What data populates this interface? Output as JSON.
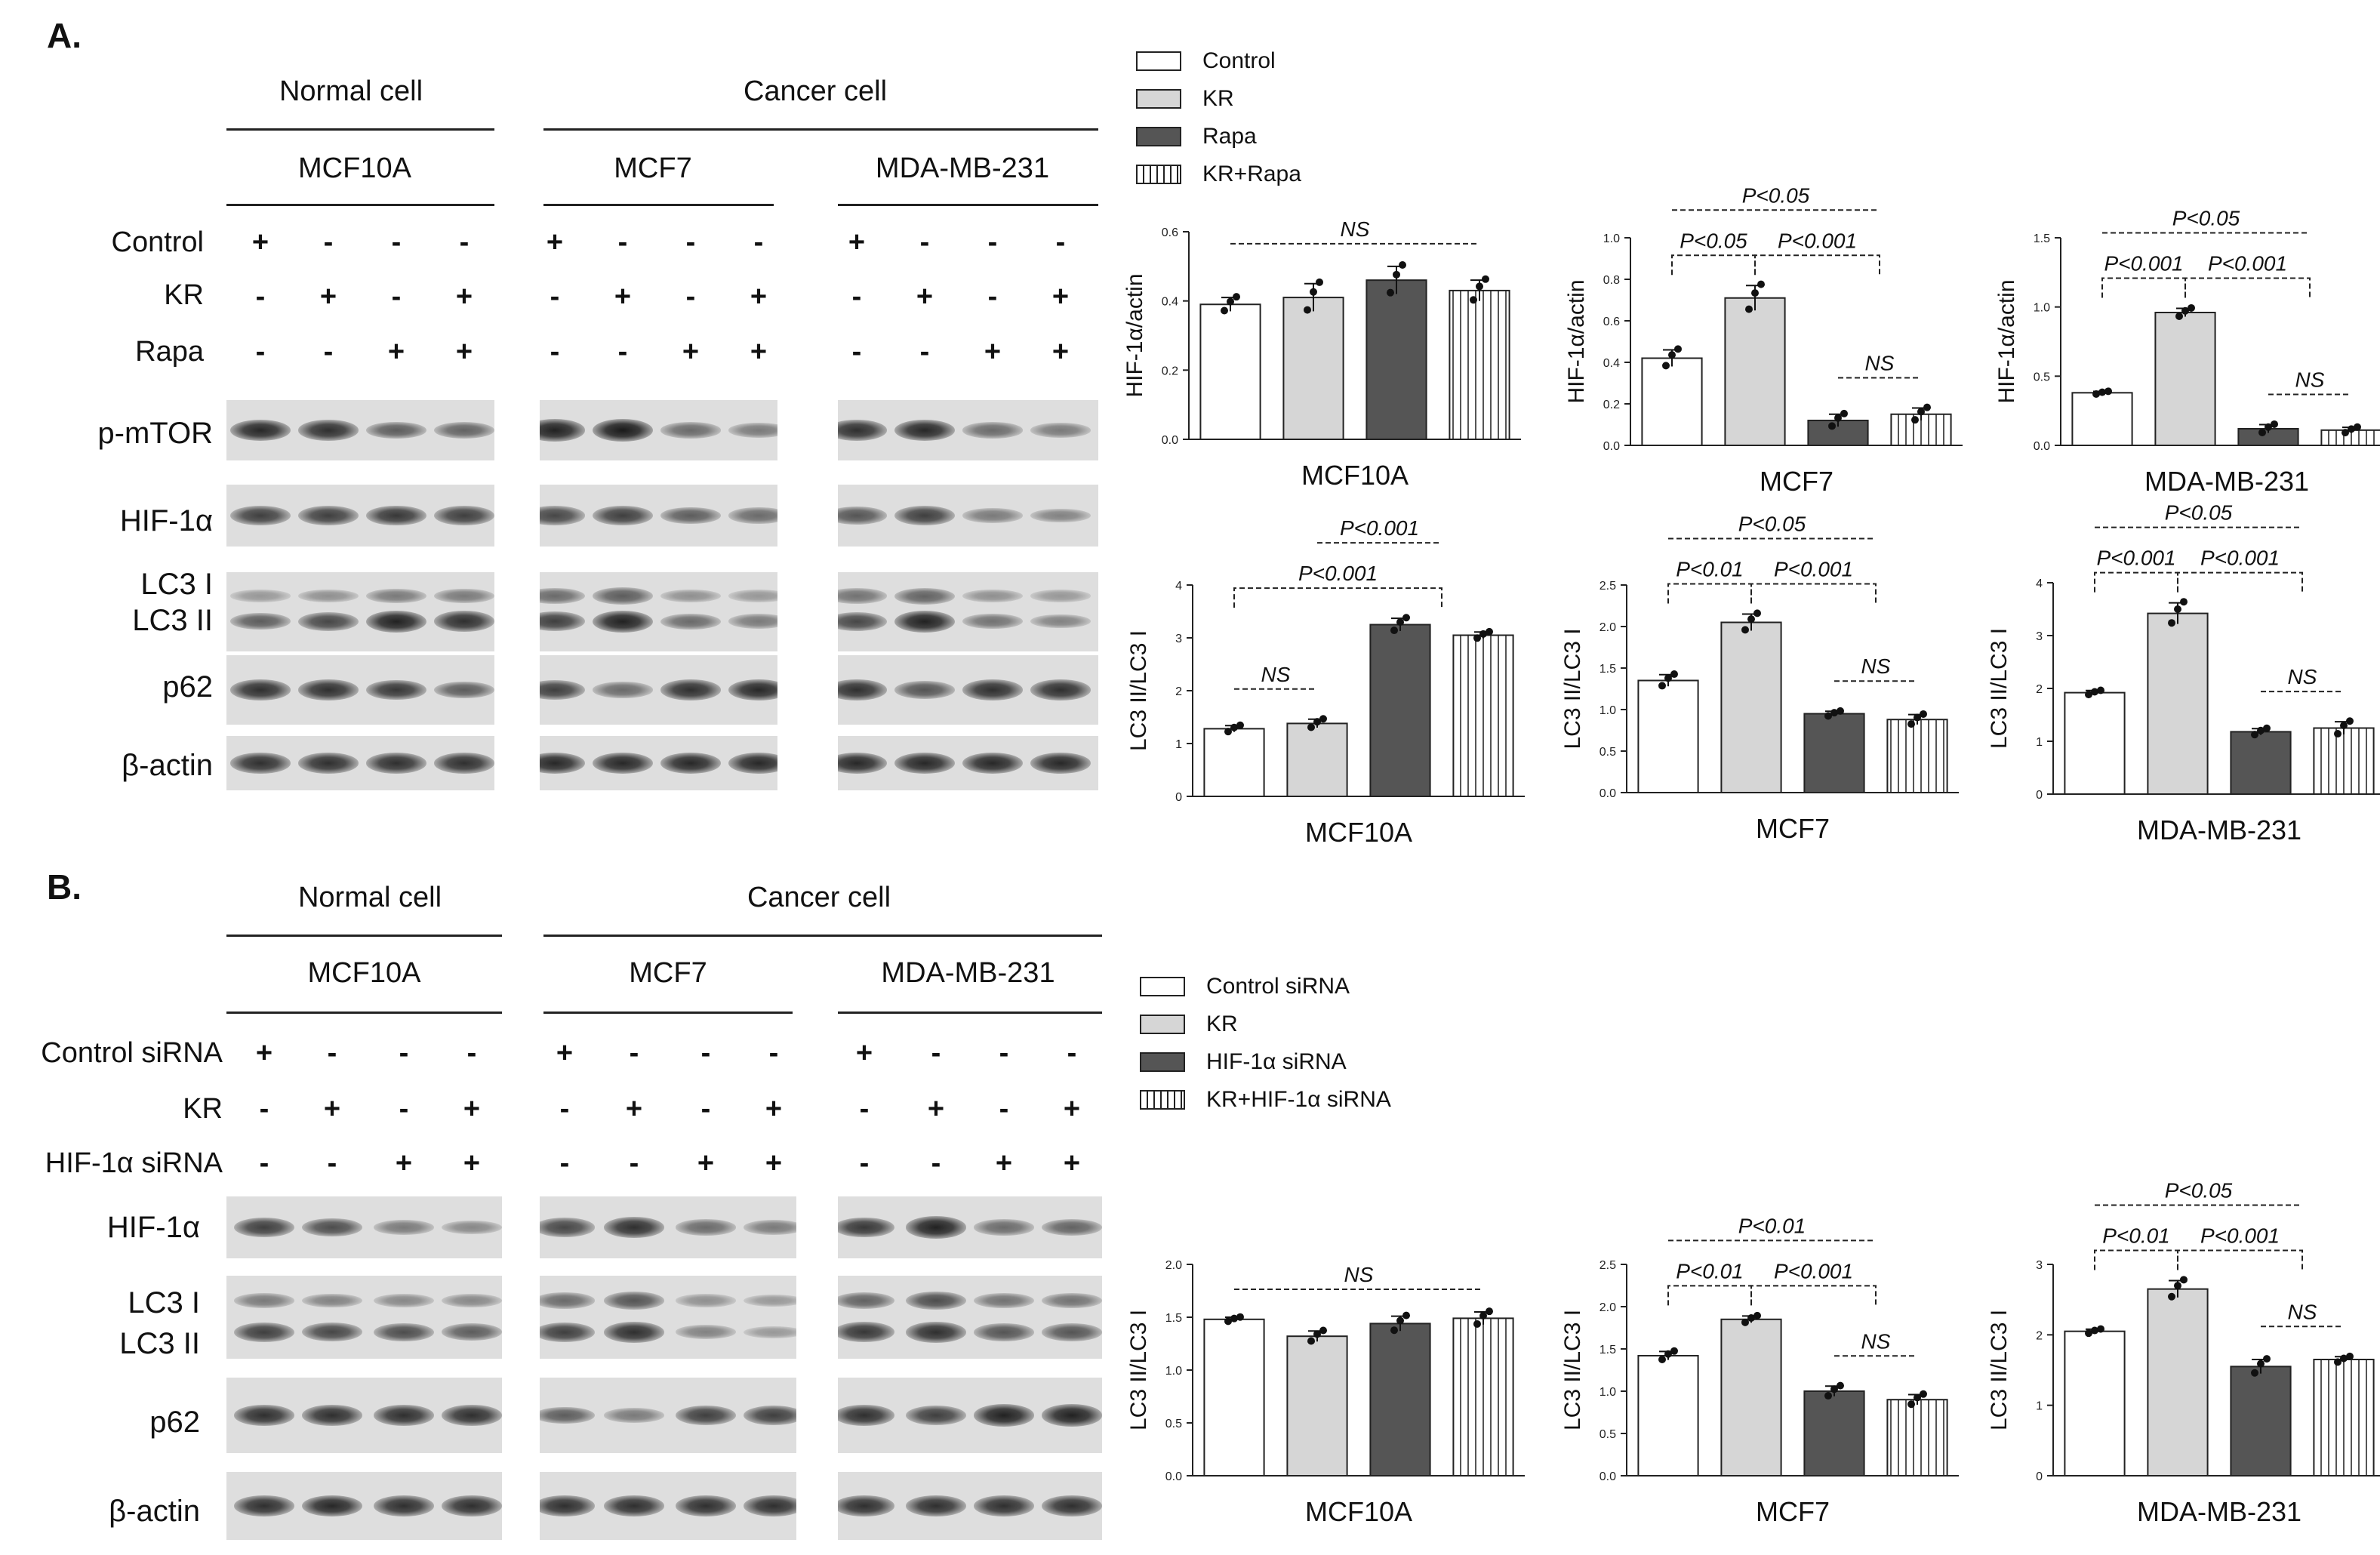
{
  "panel_a": {
    "label": "A.",
    "group_normal": "Normal cell",
    "group_cancer": "Cancer cell",
    "lines": [
      "MCF10A",
      "MCF7",
      "MDA-MB-231"
    ],
    "treatments": [
      {
        "name": "Control",
        "signs": [
          "+",
          "-",
          "-",
          "-"
        ]
      },
      {
        "name": "KR",
        "signs": [
          "-",
          "+",
          "-",
          "+"
        ]
      },
      {
        "name": "Rapa",
        "signs": [
          "-",
          "-",
          "+",
          "+"
        ]
      }
    ],
    "blots": [
      "p-mTOR",
      "HIF-1α",
      "LC3 I",
      "LC3 II",
      "p62",
      "β-actin"
    ],
    "legend": [
      "Control",
      "KR",
      "Rapa",
      "KR+Rapa"
    ]
  },
  "panel_b": {
    "label": "B.",
    "group_normal": "Normal cell",
    "group_cancer": "Cancer cell",
    "lines": [
      "MCF10A",
      "MCF7",
      "MDA-MB-231"
    ],
    "treatments": [
      {
        "name": "Control siRNA",
        "signs": [
          "+",
          "-",
          "-",
          "-"
        ]
      },
      {
        "name": "KR",
        "signs": [
          "-",
          "+",
          "-",
          "+"
        ]
      },
      {
        "name": "HIF-1α siRNA",
        "signs": [
          "-",
          "-",
          "+",
          "+"
        ]
      }
    ],
    "blots": [
      "HIF-1α",
      "LC3 I",
      "LC3 II",
      "p62",
      "β-actin"
    ],
    "legend": [
      "Control siRNA",
      "KR",
      "HIF-1α siRNA",
      "KR+HIF-1α siRNA"
    ]
  },
  "colors": {
    "control": "#ffffff",
    "kr": "#d6d6d6",
    "treat": "#555555",
    "combo": "#ffffff"
  },
  "chart_data": [
    {
      "type": "bar",
      "panel": "A",
      "title": "MCF10A",
      "ylabel": "HIF-1α/actin",
      "ylim": [
        0,
        0.6
      ],
      "yticks": [
        "0.0",
        "0.2",
        "0.4",
        "0.6"
      ],
      "values": [
        0.39,
        0.41,
        0.46,
        0.43
      ],
      "errors": [
        0.02,
        0.04,
        0.04,
        0.03
      ],
      "annotations": [
        {
          "text": "NS",
          "from": 0,
          "to": 3,
          "level": 0
        }
      ]
    },
    {
      "type": "bar",
      "panel": "A",
      "title": "MCF7",
      "ylabel": "HIF-1α/actin",
      "ylim": [
        0,
        1.0
      ],
      "yticks": [
        "0.0",
        "0.2",
        "0.4",
        "0.6",
        "0.8",
        "1.0"
      ],
      "values": [
        0.42,
        0.71,
        0.12,
        0.15
      ],
      "errors": [
        0.04,
        0.06,
        0.03,
        0.03
      ],
      "annotations": [
        {
          "text": "P<0.05",
          "from": 0,
          "to": 1,
          "level": 1
        },
        {
          "text": "P<0.001",
          "from": 1,
          "to": 2.5,
          "level": 1
        },
        {
          "text": "P<0.05",
          "from": 0,
          "to": 2.5,
          "level": 2
        },
        {
          "text": "NS",
          "from": 2,
          "to": 3,
          "level": 0
        }
      ]
    },
    {
      "type": "bar",
      "panel": "A",
      "title": "MDA-MB-231",
      "ylabel": "HIF-1α/actin",
      "ylim": [
        0,
        1.5
      ],
      "yticks": [
        "0.0",
        "0.5",
        "1.0",
        "1.5"
      ],
      "values": [
        0.38,
        0.96,
        0.12,
        0.11
      ],
      "errors": [
        0.01,
        0.03,
        0.03,
        0.02
      ],
      "annotations": [
        {
          "text": "P<0.001",
          "from": 0,
          "to": 1,
          "level": 1
        },
        {
          "text": "P<0.001",
          "from": 1,
          "to": 2.5,
          "level": 1
        },
        {
          "text": "P<0.05",
          "from": 0,
          "to": 2.5,
          "level": 2
        },
        {
          "text": "NS",
          "from": 2,
          "to": 3,
          "level": 0
        }
      ]
    },
    {
      "type": "bar",
      "panel": "A",
      "title": "MCF10A",
      "ylabel": "LC3 II/LC3 I",
      "ylim": [
        0,
        4
      ],
      "yticks": [
        "0",
        "1",
        "2",
        "3",
        "4"
      ],
      "values": [
        1.28,
        1.38,
        3.25,
        3.05
      ],
      "errors": [
        0.06,
        0.08,
        0.12,
        0.06
      ],
      "annotations": [
        {
          "text": "NS",
          "from": 0,
          "to": 1,
          "level": 0
        },
        {
          "text": "P<0.001",
          "from": 0,
          "to": 2.5,
          "level": 1
        },
        {
          "text": "P<0.001",
          "from": 1,
          "to": 2.5,
          "level": 2
        }
      ]
    },
    {
      "type": "bar",
      "panel": "A",
      "title": "MCF7",
      "ylabel": "LC3 II/LC3 I",
      "ylim": [
        0,
        2.5
      ],
      "yticks": [
        "0.0",
        "0.5",
        "1.0",
        "1.5",
        "2.0",
        "2.5"
      ],
      "values": [
        1.35,
        2.05,
        0.95,
        0.88
      ],
      "errors": [
        0.07,
        0.1,
        0.03,
        0.06
      ],
      "annotations": [
        {
          "text": "P<0.01",
          "from": 0,
          "to": 1,
          "level": 1
        },
        {
          "text": "P<0.001",
          "from": 1,
          "to": 2.5,
          "level": 1
        },
        {
          "text": "P<0.05",
          "from": 0,
          "to": 2.5,
          "level": 2
        },
        {
          "text": "NS",
          "from": 2,
          "to": 3,
          "level": 0
        }
      ]
    },
    {
      "type": "bar",
      "panel": "A",
      "title": "MDA-MB-231",
      "ylabel": "LC3 II/LC3 I",
      "ylim": [
        0,
        4
      ],
      "yticks": [
        "0",
        "1",
        "2",
        "3",
        "4"
      ],
      "values": [
        1.92,
        3.42,
        1.18,
        1.25
      ],
      "errors": [
        0.04,
        0.2,
        0.06,
        0.12
      ],
      "annotations": [
        {
          "text": "P<0.001",
          "from": 0,
          "to": 1,
          "level": 1
        },
        {
          "text": "P<0.001",
          "from": 1,
          "to": 2.5,
          "level": 1
        },
        {
          "text": "P<0.05",
          "from": 0,
          "to": 2.5,
          "level": 2
        },
        {
          "text": "NS",
          "from": 2,
          "to": 3,
          "level": 0
        }
      ]
    },
    {
      "type": "bar",
      "panel": "B",
      "title": "MCF10A",
      "ylabel": "LC3 II/LC3 I",
      "ylim": [
        0,
        2.0
      ],
      "yticks": [
        "0.0",
        "0.5",
        "1.0",
        "1.5",
        "2.0"
      ],
      "values": [
        1.48,
        1.32,
        1.44,
        1.49
      ],
      "errors": [
        0.02,
        0.05,
        0.07,
        0.06
      ],
      "annotations": [
        {
          "text": "NS",
          "from": 0,
          "to": 3,
          "level": 0
        }
      ]
    },
    {
      "type": "bar",
      "panel": "B",
      "title": "MCF7",
      "ylabel": "LC3 II/LC3 I",
      "ylim": [
        0,
        2.5
      ],
      "yticks": [
        "0.0",
        "0.5",
        "1.0",
        "1.5",
        "2.0",
        "2.5"
      ],
      "values": [
        1.42,
        1.85,
        1.0,
        0.9
      ],
      "errors": [
        0.05,
        0.04,
        0.06,
        0.06
      ],
      "annotations": [
        {
          "text": "P<0.01",
          "from": 0,
          "to": 1,
          "level": 1
        },
        {
          "text": "P<0.001",
          "from": 1,
          "to": 2.5,
          "level": 1
        },
        {
          "text": "P<0.01",
          "from": 0,
          "to": 2.5,
          "level": 2
        },
        {
          "text": "NS",
          "from": 2,
          "to": 3,
          "level": 0
        }
      ]
    },
    {
      "type": "bar",
      "panel": "B",
      "title": "MDA-MB-231",
      "ylabel": "LC3 II/LC3 I",
      "ylim": [
        0,
        3
      ],
      "yticks": [
        "0",
        "1",
        "2",
        "3"
      ],
      "values": [
        2.05,
        2.65,
        1.55,
        1.65
      ],
      "errors": [
        0.03,
        0.12,
        0.1,
        0.04
      ],
      "annotations": [
        {
          "text": "P<0.01",
          "from": 0,
          "to": 1,
          "level": 1
        },
        {
          "text": "P<0.001",
          "from": 1,
          "to": 2.5,
          "level": 1
        },
        {
          "text": "P<0.05",
          "from": 0,
          "to": 2.5,
          "level": 2
        },
        {
          "text": "NS",
          "from": 2,
          "to": 3,
          "level": 0
        }
      ]
    }
  ]
}
